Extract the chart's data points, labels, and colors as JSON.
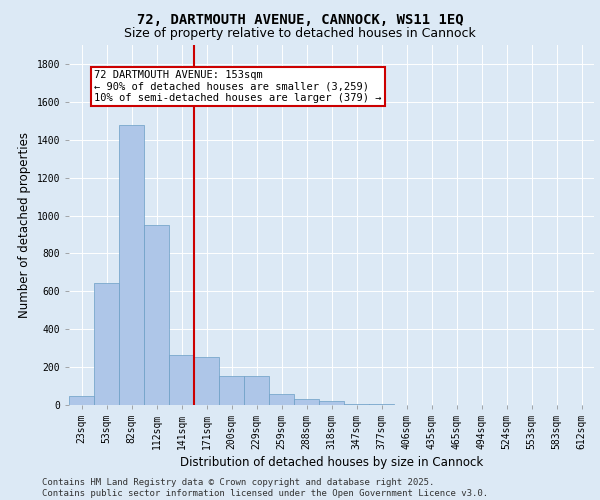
{
  "title1": "72, DARTMOUTH AVENUE, CANNOCK, WS11 1EQ",
  "title2": "Size of property relative to detached houses in Cannock",
  "xlabel": "Distribution of detached houses by size in Cannock",
  "ylabel": "Number of detached properties",
  "categories": [
    "23sqm",
    "53sqm",
    "82sqm",
    "112sqm",
    "141sqm",
    "171sqm",
    "200sqm",
    "229sqm",
    "259sqm",
    "288sqm",
    "318sqm",
    "347sqm",
    "377sqm",
    "406sqm",
    "435sqm",
    "465sqm",
    "494sqm",
    "524sqm",
    "553sqm",
    "583sqm",
    "612sqm"
  ],
  "values": [
    50,
    645,
    1480,
    950,
    265,
    255,
    155,
    155,
    60,
    30,
    20,
    5,
    5,
    2,
    1,
    0,
    0,
    0,
    0,
    0,
    0
  ],
  "bar_color": "#aec6e8",
  "bar_edge_color": "#6a9ec5",
  "vline_color": "#cc0000",
  "annotation_text": "72 DARTMOUTH AVENUE: 153sqm\n← 90% of detached houses are smaller (3,259)\n10% of semi-detached houses are larger (379) →",
  "annotation_box_color": "#cc0000",
  "background_color": "#dce9f5",
  "plot_bg_color": "#dce9f5",
  "grid_color": "#ffffff",
  "ylim": [
    0,
    1900
  ],
  "yticks": [
    0,
    200,
    400,
    600,
    800,
    1000,
    1200,
    1400,
    1600,
    1800
  ],
  "footer_line1": "Contains HM Land Registry data © Crown copyright and database right 2025.",
  "footer_line2": "Contains public sector information licensed under the Open Government Licence v3.0.",
  "title1_fontsize": 10,
  "title2_fontsize": 9,
  "tick_fontsize": 7,
  "label_fontsize": 8.5,
  "footer_fontsize": 6.5
}
